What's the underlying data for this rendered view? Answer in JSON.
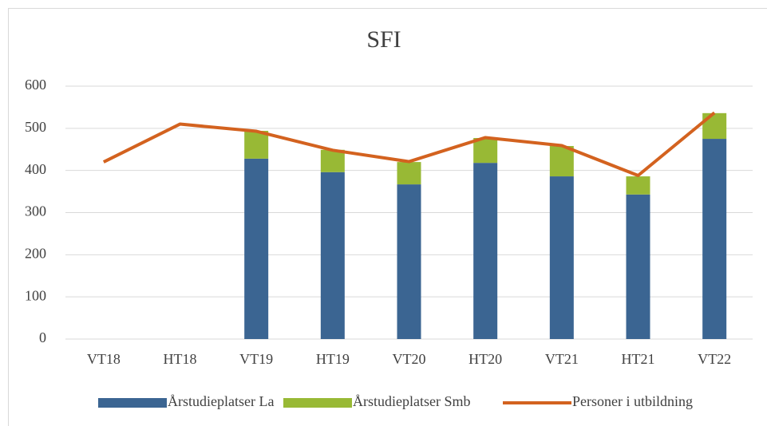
{
  "chart_data": {
    "type": "bar_line",
    "title": "SFI",
    "categories": [
      "VT18",
      "HT18",
      "VT19",
      "HT19",
      "VT20",
      "HT20",
      "VT21",
      "HT21",
      "VT22"
    ],
    "series": [
      {
        "name": "Årstudieplatser La",
        "color": "#3b6592",
        "kind": "bar",
        "values": [
          null,
          null,
          428,
          396,
          367,
          418,
          386,
          343,
          475
        ]
      },
      {
        "name": "Årstudieplatser Smb",
        "color": "#98b935",
        "kind": "bar",
        "values": [
          null,
          null,
          66,
          53,
          53,
          59,
          72,
          43,
          61
        ]
      },
      {
        "name": "Personer i utbildning",
        "color": "#d3621f",
        "kind": "line",
        "values": [
          420,
          510,
          493,
          448,
          421,
          478,
          459,
          388,
          537
        ]
      }
    ],
    "stacked": true,
    "ylim": [
      0,
      600
    ],
    "yticks": [
      0,
      100,
      200,
      300,
      400,
      500,
      600
    ],
    "grid": true,
    "legend": "bottom"
  }
}
